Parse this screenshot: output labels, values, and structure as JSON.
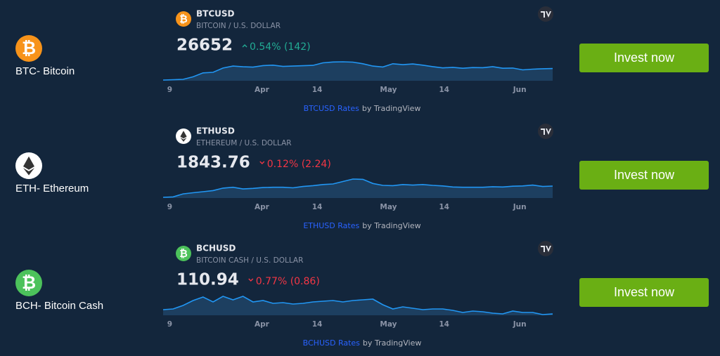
{
  "assets": [
    {
      "name": "BTC- Bitcoin",
      "symbol": "BTCUSD",
      "description": "BITCOIN / U.S. DOLLAR",
      "price": 26652,
      "change": "0.54% (142)",
      "direction": "up",
      "change_color": "#22ab94",
      "x_labels": [
        "9",
        "Apr",
        "14",
        "May",
        "14",
        "Jun"
      ],
      "values": [
        20200,
        20400,
        20600,
        22000,
        24200,
        24500,
        26900,
        28000,
        27600,
        27400,
        28300,
        28500,
        27800,
        28000,
        28200,
        28400,
        29800,
        30300,
        30400,
        30200,
        29300,
        28000,
        27500,
        29300,
        28800,
        29200,
        28500,
        27700,
        27000,
        27300,
        26800,
        27200,
        27100,
        27700,
        26800,
        26900,
        25900,
        26300,
        26500,
        26652
      ],
      "link": "BTCUSD Rates",
      "attribution": "by TradingView",
      "button": "Invest now"
    },
    {
      "name": "ETH- Ethereum",
      "symbol": "ETHUSD",
      "description": "ETHEREUM / U.S. DOLLAR",
      "price": 1843.76,
      "change": "0.12% (2.24)",
      "direction": "down",
      "change_color": "#f23645",
      "x_labels": [
        "9",
        "Apr",
        "14",
        "May",
        "14",
        "Jun"
      ],
      "values": [
        1435,
        1450,
        1560,
        1600,
        1640,
        1680,
        1770,
        1800,
        1740,
        1760,
        1790,
        1800,
        1800,
        1780,
        1830,
        1860,
        1900,
        1920,
        2010,
        2100,
        2090,
        1940,
        1870,
        1860,
        1900,
        1880,
        1900,
        1870,
        1850,
        1810,
        1800,
        1800,
        1800,
        1820,
        1810,
        1840,
        1850,
        1880,
        1830,
        1843.76
      ],
      "link": "ETHUSD Rates",
      "attribution": "by TradingView",
      "button": "Invest now"
    },
    {
      "name": "BCH- Bitcoin Cash",
      "symbol": "BCHUSD",
      "description": "BITCOIN CASH / U.S. DOLLAR",
      "price": 110.94,
      "change": "0.77% (0.86)",
      "direction": "down",
      "change_color": "#f23645",
      "x_labels": [
        "9",
        "Apr",
        "14",
        "May",
        "14",
        "Jun"
      ],
      "values": [
        117,
        118,
        123,
        130,
        135,
        128,
        136,
        131,
        136,
        128,
        130,
        126,
        127,
        125,
        126,
        128,
        129,
        130,
        128,
        130,
        131,
        132,
        124,
        118,
        121,
        119,
        117,
        118,
        118,
        116,
        113,
        115,
        114,
        112,
        111,
        115,
        113,
        113,
        110,
        110.94
      ],
      "link": "BCHUSD Rates",
      "attribution": "by TradingView",
      "button": "Invest now"
    }
  ]
}
